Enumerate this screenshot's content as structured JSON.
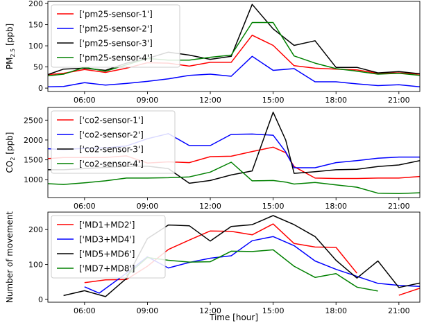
{
  "chart_data": [
    {
      "type": "line",
      "ylabel_main": "PM",
      "ylabel_sub": "2.5",
      "ylabel_unit": " [ppb]",
      "xlabel": "",
      "xlim": [
        4.25,
        22.0
      ],
      "ylim": [
        -8,
        205
      ],
      "x_ticks": [
        6,
        9,
        12,
        15,
        18,
        21
      ],
      "x_tick_labels": [
        "06:00",
        "09:00",
        "12:00",
        "15:00",
        "18:00",
        "21:00"
      ],
      "y_ticks": [
        0,
        50,
        100,
        150,
        200
      ],
      "y_tick_labels": [
        "0",
        "50",
        "100",
        "150",
        "200"
      ],
      "legend_position": "top-left",
      "x": [
        4.25,
        5,
        6,
        7,
        8,
        9,
        10,
        11,
        12,
        13,
        14,
        15,
        16,
        17,
        18,
        19,
        20,
        21,
        22
      ],
      "series": [
        {
          "name": "['pm25-sensor-1']",
          "color": "#ff0000",
          "values": [
            32,
            35,
            44,
            37,
            47,
            60,
            59,
            52,
            61,
            61,
            125,
            101,
            53,
            47,
            45,
            43,
            35,
            36,
            33
          ]
        },
        {
          "name": "['pm25-sensor-2']",
          "color": "#0000ff",
          "values": [
            3,
            4,
            13,
            7,
            11,
            16,
            22,
            30,
            33,
            28,
            75,
            42,
            46,
            15,
            15,
            10,
            6,
            8,
            3
          ]
        },
        {
          "name": "['pm25-sensor-3']",
          "color": "#000000",
          "values": [
            32,
            45,
            47,
            42,
            59,
            70,
            85,
            78,
            68,
            75,
            198,
            140,
            101,
            112,
            49,
            49,
            36,
            39,
            34
          ]
        },
        {
          "name": "['pm25-sensor-4']",
          "color": "#008000",
          "values": [
            29,
            33,
            49,
            40,
            55,
            70,
            66,
            66,
            73,
            78,
            155,
            155,
            76,
            59,
            46,
            40,
            33,
            35,
            30
          ]
        }
      ]
    },
    {
      "type": "line",
      "ylabel_main": "CO",
      "ylabel_sub": "2",
      "ylabel_unit": " [ppb]",
      "xlabel": "",
      "xlim": [
        4.25,
        22.0
      ],
      "ylim": [
        550,
        2820
      ],
      "x_ticks": [
        6,
        9,
        12,
        15,
        18,
        21
      ],
      "x_tick_labels": [
        "06:00",
        "09:00",
        "12:00",
        "15:00",
        "18:00",
        "21:00"
      ],
      "y_ticks": [
        1000,
        1500,
        2000,
        2500
      ],
      "y_tick_labels": [
        "1000",
        "1500",
        "2000",
        "2500"
      ],
      "legend_position": "top-left",
      "x": [
        4.25,
        5,
        6,
        7,
        8,
        9,
        10,
        11,
        12,
        13,
        14,
        15,
        15.6,
        16,
        17,
        18,
        19,
        20,
        21,
        22
      ],
      "series": [
        {
          "name": "['co2-sensor-1']",
          "color": "#ff0000",
          "values": [
            1530,
            1560,
            1560,
            1560,
            1600,
            1420,
            1450,
            1430,
            1580,
            1590,
            1710,
            1820,
            1680,
            1330,
            1040,
            1030,
            1030,
            1040,
            1040,
            1080
          ]
        },
        {
          "name": "['co2-sensor-2']",
          "color": "#0000ff",
          "values": [
            1780,
            1760,
            1790,
            1800,
            1850,
            2030,
            2160,
            1860,
            1860,
            2140,
            2150,
            2120,
            1700,
            1300,
            1300,
            1430,
            1480,
            1540,
            1570,
            1570
          ]
        },
        {
          "name": "['co2-sensor-3']",
          "color": "#000000",
          "values": [
            1250,
            1250,
            1280,
            1310,
            1330,
            1340,
            1280,
            910,
            980,
            1120,
            1220,
            2700,
            2000,
            1160,
            1200,
            1250,
            1260,
            1330,
            1370,
            1480
          ]
        },
        {
          "name": "['co2-sensor-4']",
          "color": "#008000",
          "values": [
            900,
            880,
            920,
            970,
            1040,
            1040,
            1050,
            1070,
            1190,
            1440,
            970,
            980,
            940,
            890,
            930,
            870,
            810,
            660,
            650,
            670
          ]
        }
      ]
    },
    {
      "type": "line",
      "ylabel": "Number of movement",
      "xlabel": "Time [hour]",
      "xlim": [
        4.25,
        22.0
      ],
      "ylim": [
        -8,
        250
      ],
      "x_ticks": [
        6,
        9,
        12,
        15,
        18,
        21
      ],
      "x_tick_labels": [
        "06:00",
        "09:00",
        "12:00",
        "15:00",
        "18:00",
        "21:00"
      ],
      "y_ticks": [
        0,
        100,
        200
      ],
      "y_tick_labels": [
        "0",
        "100",
        "200"
      ],
      "legend_position": "top-left",
      "series": [
        {
          "name": "['MD1+MD2']",
          "color": "#ff0000",
          "x": [
            6,
            7,
            8,
            9,
            10,
            11,
            12,
            13,
            14,
            15,
            16,
            17,
            18,
            19,
            null,
            21,
            22
          ],
          "values": [
            48,
            56,
            57,
            95,
            143,
            170,
            196,
            195,
            185,
            216,
            160,
            150,
            149,
            75,
            null,
            12,
            32
          ]
        },
        {
          "name": "['MD3+MD4']",
          "color": "#0000ff",
          "x": [
            6,
            6.7,
            8,
            9,
            10,
            11,
            12,
            13,
            14,
            15,
            16,
            17,
            18,
            19,
            20,
            21,
            22
          ],
          "values": [
            36,
            18,
            75,
            122,
            90,
            106,
            118,
            125,
            168,
            180,
            154,
            110,
            86,
            66,
            46,
            40,
            37
          ]
        },
        {
          "name": "['MD5+MD6']",
          "color": "#000000",
          "x": [
            5,
            6,
            7,
            8,
            9,
            10,
            11,
            12,
            13,
            14,
            15,
            16,
            17,
            18,
            19,
            20,
            21,
            22
          ],
          "values": [
            11,
            25,
            8,
            60,
            174,
            213,
            211,
            167,
            209,
            214,
            240,
            214,
            180,
            112,
            61,
            110,
            34,
            47
          ]
        },
        {
          "name": "['MD7+MD8']",
          "color": "#008000",
          "x": [
            8,
            9,
            10,
            11,
            12,
            13,
            14,
            15,
            16,
            17,
            18,
            19,
            20
          ],
          "values": [
            68,
            120,
            112,
            107,
            108,
            138,
            137,
            142,
            95,
            63,
            74,
            35,
            24
          ]
        }
      ]
    }
  ]
}
